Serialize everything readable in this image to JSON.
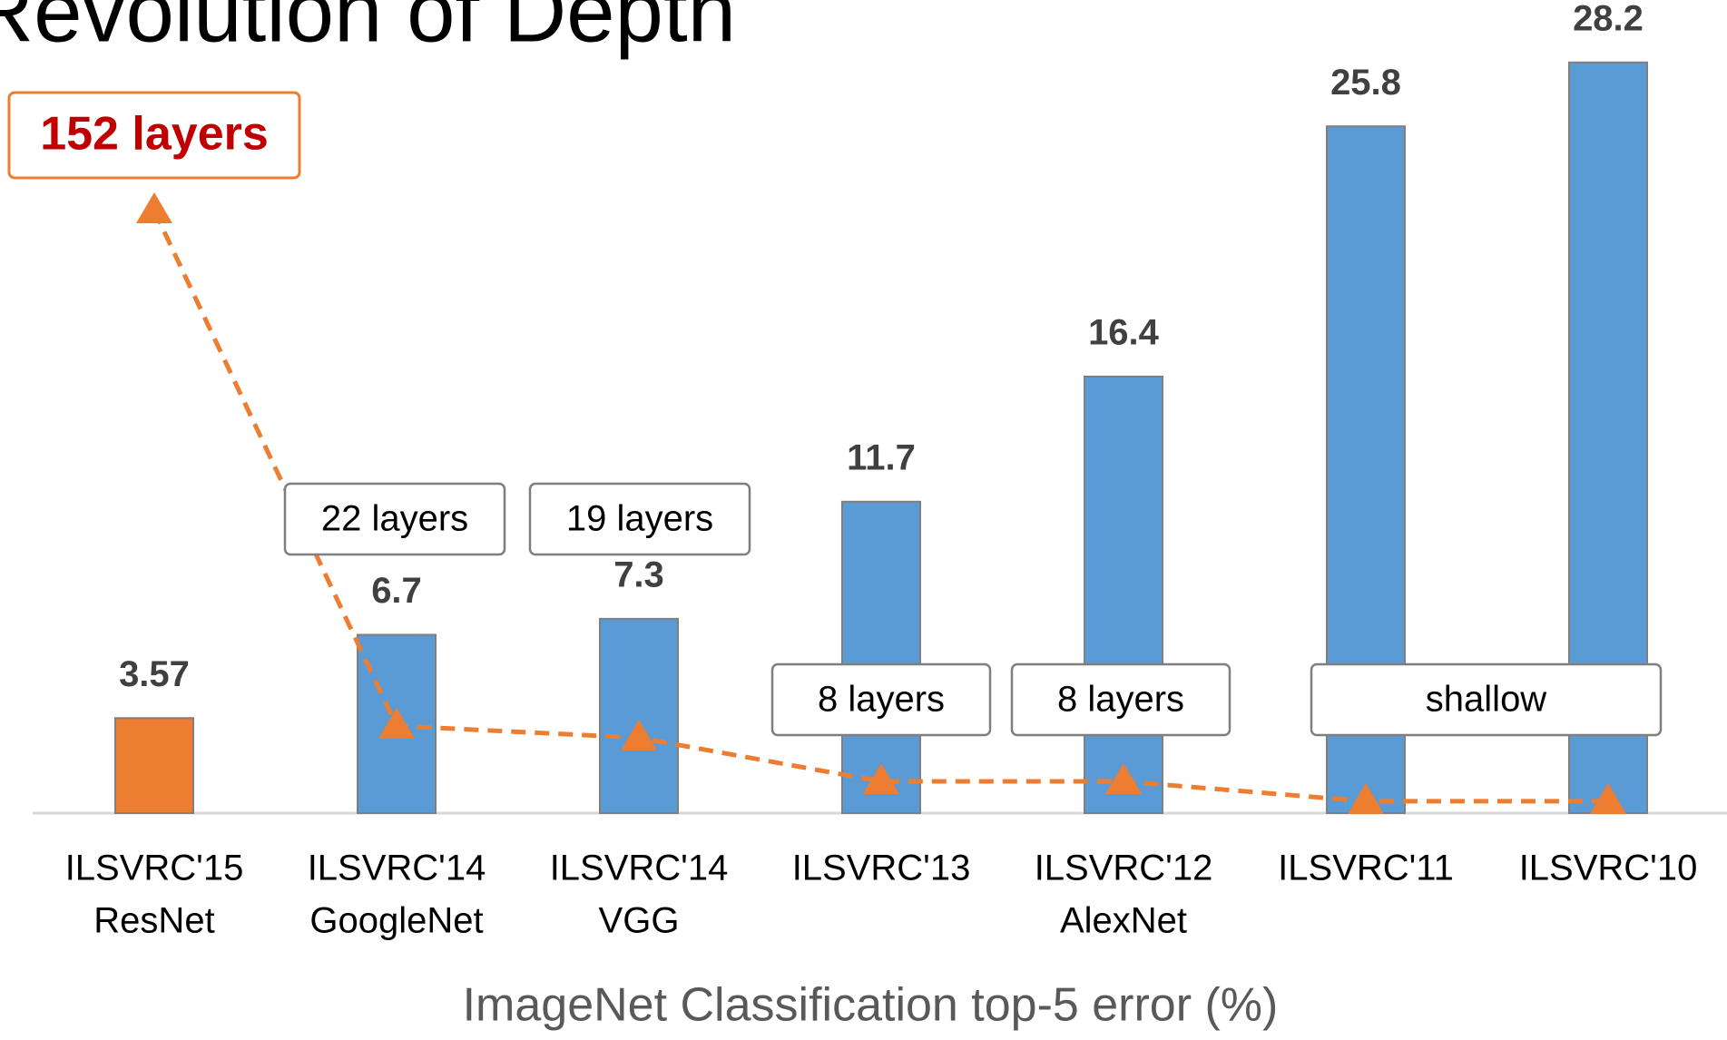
{
  "chart_data": {
    "type": "bar",
    "title": "Revolution of Depth",
    "x_label": "ImageNet Classification top-5 error (%)",
    "categories": [
      [
        "ILSVRC'15",
        "ResNet"
      ],
      [
        "ILSVRC'14",
        "GoogleNet"
      ],
      [
        "ILSVRC'14",
        "VGG"
      ],
      [
        "ILSVRC'13"
      ],
      [
        "ILSVRC'12",
        "AlexNet"
      ],
      [
        "ILSVRC'11"
      ],
      [
        "ILSVRC'10"
      ]
    ],
    "ylim": [
      0,
      30
    ],
    "y2lim": [
      0,
      160
    ],
    "series": [
      {
        "type": "bar",
        "values": [
          3.57,
          6.7,
          7.3,
          11.7,
          16.4,
          25.8,
          28.2
        ],
        "colors": [
          "#ed7d31",
          "#5b9bd5",
          "#5b9bd5",
          "#5b9bd5",
          "#5b9bd5",
          "#5b9bd5",
          "#5b9bd5"
        ]
      },
      {
        "type": "line",
        "axis": "y2",
        "values": [
          152,
          22,
          19,
          8,
          8,
          3,
          3
        ],
        "color": "#ed7d31"
      }
    ],
    "annotations": [
      "152 layers",
      "22 layers",
      "19 layers",
      "8 layers",
      "8 layers",
      "shallow"
    ]
  }
}
